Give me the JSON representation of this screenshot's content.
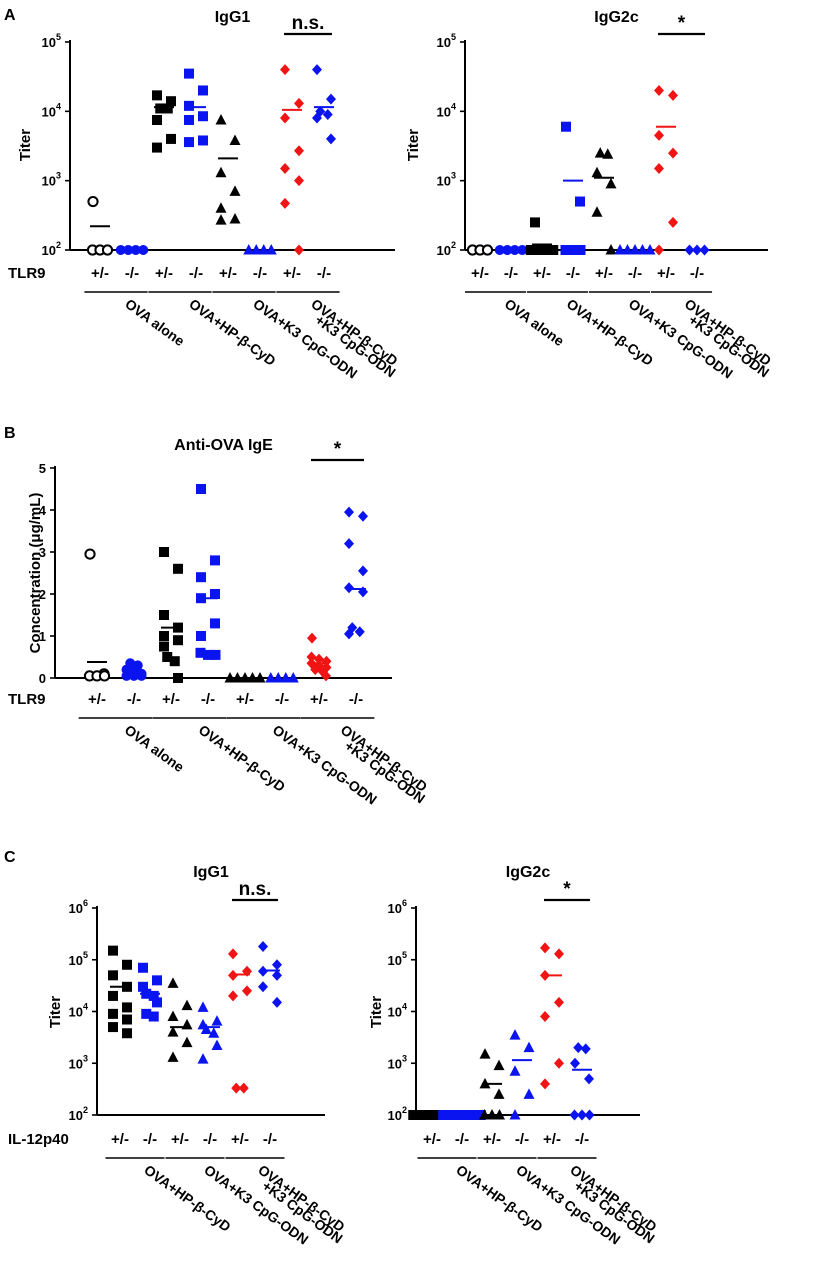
{
  "panel_labels": {
    "A": "A",
    "B": "B",
    "C": "C"
  },
  "colors": {
    "black": "#000000",
    "blue": "#0a14f0",
    "red": "#f01414",
    "white": "#ffffff"
  },
  "chart_data": [
    {
      "id": "A-IgG1",
      "type": "scatter",
      "title": "IgG1",
      "ylabel": "Titer",
      "yscale": "log",
      "ylim": [
        100,
        100000
      ],
      "yticks": [
        {
          "v": 100,
          "b": "10",
          "e": "2"
        },
        {
          "v": 1000,
          "b": "10",
          "e": "3"
        },
        {
          "v": 10000,
          "b": "10",
          "e": "4"
        },
        {
          "v": 100000,
          "b": "10",
          "e": "5"
        }
      ],
      "row_label": "TLR9",
      "genotypes": [
        "+/-",
        "-/-",
        "+/-",
        "-/-",
        "+/-",
        "-/-",
        "+/-",
        "-/-"
      ],
      "group_labels": [
        "OVA alone",
        "OVA+HP-β-CyD",
        "OVA+K3 CpG-ODN",
        [
          "OVA+HP-β-CyD",
          "+K3 CpG-ODN"
        ]
      ],
      "series": [
        {
          "marker": "circle-open",
          "color": "black",
          "values": [
            500,
            100,
            100,
            100
          ],
          "mean": 220
        },
        {
          "marker": "circle",
          "color": "blue",
          "values": [
            100,
            100,
            100,
            100
          ],
          "mean": null
        },
        {
          "marker": "square",
          "color": "black",
          "values": [
            17000,
            14000,
            11000,
            11000,
            7500,
            4000,
            3000
          ],
          "mean": 11500
        },
        {
          "marker": "square",
          "color": "blue",
          "values": [
            35000,
            20000,
            12000,
            8500,
            7500,
            3800,
            3600
          ],
          "mean": 11500
        },
        {
          "marker": "triangle",
          "color": "black",
          "values": [
            7500,
            3800,
            1300,
            700,
            400,
            280,
            270
          ],
          "mean": 2100
        },
        {
          "marker": "triangle",
          "color": "blue",
          "values": [
            100,
            100,
            100,
            100
          ],
          "mean": null
        },
        {
          "marker": "diamond",
          "color": "red",
          "values": [
            40000,
            13000,
            8000,
            2700,
            1500,
            1000,
            470,
            100
          ],
          "mean": 10500
        },
        {
          "marker": "diamond",
          "color": "blue",
          "values": [
            40000,
            15000,
            10000,
            9000,
            8000,
            4000
          ],
          "mean": 11500
        }
      ],
      "annotations": [
        {
          "text": "n.s.",
          "from": 6,
          "to": 7
        }
      ]
    },
    {
      "id": "A-IgG2c",
      "type": "scatter",
      "title": "IgG2c",
      "ylabel": "Titer",
      "yscale": "log",
      "ylim": [
        100,
        100000
      ],
      "yticks": [
        {
          "v": 100,
          "b": "10",
          "e": "2"
        },
        {
          "v": 1000,
          "b": "10",
          "e": "3"
        },
        {
          "v": 10000,
          "b": "10",
          "e": "4"
        },
        {
          "v": 100000,
          "b": "10",
          "e": "5"
        }
      ],
      "row_label": "",
      "genotypes": [
        "+/-",
        "-/-",
        "+/-",
        "-/-",
        "+/-",
        "-/-",
        "+/-",
        "-/-"
      ],
      "group_labels": [
        "OVA alone",
        "OVA+HP-β-CyD",
        "OVA+K3 CpG-ODN",
        [
          "OVA+HP-β-CyD",
          "+K3 CpG-ODN"
        ]
      ],
      "series": [
        {
          "marker": "circle-open",
          "color": "black",
          "values": [
            100,
            100,
            100
          ],
          "mean": null
        },
        {
          "marker": "circle",
          "color": "blue",
          "values": [
            100,
            100,
            100,
            100
          ],
          "mean": null
        },
        {
          "marker": "square",
          "color": "black",
          "values": [
            250,
            100,
            100,
            100,
            100
          ],
          "mean": 120
        },
        {
          "marker": "square",
          "color": "blue",
          "values": [
            6000,
            500,
            100,
            100,
            100
          ],
          "mean": 1000
        },
        {
          "marker": "triangle",
          "color": "black",
          "values": [
            2500,
            2400,
            1300,
            900,
            350,
            100
          ],
          "mean": 1100
        },
        {
          "marker": "triangle",
          "color": "blue",
          "values": [
            100,
            100,
            100,
            100,
            100
          ],
          "mean": null
        },
        {
          "marker": "diamond",
          "color": "red",
          "values": [
            20000,
            17000,
            4500,
            2500,
            1500,
            250,
            100
          ],
          "mean": 6000
        },
        {
          "marker": "diamond",
          "color": "blue",
          "values": [
            100,
            100,
            100
          ],
          "mean": null
        }
      ],
      "annotations": [
        {
          "text": "*",
          "from": 6,
          "to": 7
        }
      ]
    },
    {
      "id": "B-IgE",
      "type": "scatter",
      "title": "Anti-OVA IgE",
      "ylabel": "Concentration (μg/mL)",
      "yscale": "linear",
      "ylim": [
        0,
        5
      ],
      "yticks": [
        {
          "v": 0,
          "t": "0"
        },
        {
          "v": 1,
          "t": "1"
        },
        {
          "v": 2,
          "t": "2"
        },
        {
          "v": 3,
          "t": "3"
        },
        {
          "v": 4,
          "t": "4"
        },
        {
          "v": 5,
          "t": "5"
        }
      ],
      "row_label": "TLR9",
      "genotypes": [
        "+/-",
        "-/-",
        "+/-",
        "-/-",
        "+/-",
        "-/-",
        "+/-",
        "-/-"
      ],
      "group_labels": [
        "OVA alone",
        "OVA+HP-β-CyD",
        "OVA+K3 CpG-ODN",
        [
          "OVA+HP-β-CyD",
          "+K3 CpG-ODN"
        ]
      ],
      "series": [
        {
          "marker": "circle-open",
          "color": "black",
          "values": [
            2.95,
            0.1,
            0.05,
            0.05,
            0.05
          ],
          "mean": 0.38
        },
        {
          "marker": "circle",
          "color": "blue",
          "values": [
            0.35,
            0.3,
            0.2,
            0.15,
            0.1,
            0.05,
            0.05,
            0.05
          ],
          "mean": 0.15
        },
        {
          "marker": "square",
          "color": "black",
          "values": [
            3.0,
            2.6,
            1.5,
            1.2,
            1.0,
            0.9,
            0.75,
            0.5,
            0.4,
            0.0
          ],
          "mean": 1.2
        },
        {
          "marker": "square",
          "color": "blue",
          "values": [
            4.5,
            2.8,
            2.4,
            2.0,
            1.9,
            1.3,
            1.0,
            0.6,
            0.55,
            0.55
          ],
          "mean": 1.9
        },
        {
          "marker": "triangle",
          "color": "black",
          "values": [
            0,
            0,
            0,
            0,
            0
          ],
          "mean": null
        },
        {
          "marker": "triangle",
          "color": "blue",
          "values": [
            0,
            0,
            0,
            0
          ],
          "mean": null
        },
        {
          "marker": "diamond",
          "color": "red",
          "values": [
            0.95,
            0.5,
            0.45,
            0.4,
            0.35,
            0.3,
            0.25,
            0.2,
            0.15,
            0.05
          ],
          "mean": 0.35
        },
        {
          "marker": "diamond",
          "color": "blue",
          "values": [
            3.95,
            3.85,
            3.2,
            2.55,
            2.15,
            2.05,
            1.2,
            1.1,
            1.05
          ],
          "mean": 2.12
        }
      ],
      "annotations": [
        {
          "text": "*",
          "from": 6,
          "to": 7
        }
      ]
    },
    {
      "id": "C-IgG1",
      "type": "scatter",
      "title": "IgG1",
      "ylabel": "Titer",
      "yscale": "log",
      "ylim": [
        100,
        1000000
      ],
      "yticks": [
        {
          "v": 100,
          "b": "10",
          "e": "2"
        },
        {
          "v": 1000,
          "b": "10",
          "e": "3"
        },
        {
          "v": 10000,
          "b": "10",
          "e": "4"
        },
        {
          "v": 100000,
          "b": "10",
          "e": "5"
        },
        {
          "v": 1000000,
          "b": "10",
          "e": "6"
        }
      ],
      "row_label": "IL-12p40",
      "genotypes": [
        "+/-",
        "-/-",
        "+/-",
        "-/-",
        "+/-",
        "-/-"
      ],
      "group_labels": [
        "OVA+HP-β-CyD",
        "OVA+K3 CpG-ODN",
        [
          "OVA+HP-β-CyD",
          "+K3 CpG-ODN"
        ]
      ],
      "series": [
        {
          "marker": "square",
          "color": "black",
          "values": [
            150000,
            80000,
            50000,
            30000,
            20000,
            12000,
            9000,
            7000,
            5000,
            3800
          ],
          "mean": 30000
        },
        {
          "marker": "square",
          "color": "blue",
          "values": [
            70000,
            40000,
            30000,
            22000,
            20000,
            15000,
            9000,
            8000
          ],
          "mean": 22000
        },
        {
          "marker": "triangle",
          "color": "black",
          "values": [
            35000,
            13000,
            8000,
            5500,
            4000,
            2500,
            1300
          ],
          "mean": 5000
        },
        {
          "marker": "triangle",
          "color": "blue",
          "values": [
            12000,
            6500,
            5500,
            4500,
            3800,
            2200,
            1200
          ],
          "mean": 5000
        },
        {
          "marker": "diamond",
          "color": "red",
          "values": [
            130000,
            60000,
            50000,
            25000,
            20000,
            330,
            330
          ],
          "mean": 52000
        },
        {
          "marker": "diamond",
          "color": "blue",
          "values": [
            180000,
            80000,
            60000,
            50000,
            30000,
            15000
          ],
          "mean": 62000
        }
      ],
      "annotations": [
        {
          "text": "n.s.",
          "from": 4,
          "to": 5
        }
      ]
    },
    {
      "id": "C-IgG2c",
      "type": "scatter",
      "title": "IgG2c",
      "ylabel": "Titer",
      "yscale": "log",
      "ylim": [
        100,
        1000000
      ],
      "yticks": [
        {
          "v": 100,
          "b": "10",
          "e": "2"
        },
        {
          "v": 1000,
          "b": "10",
          "e": "3"
        },
        {
          "v": 10000,
          "b": "10",
          "e": "4"
        },
        {
          "v": 100000,
          "b": "10",
          "e": "5"
        },
        {
          "v": 1000000,
          "b": "10",
          "e": "6"
        }
      ],
      "row_label": "",
      "genotypes": [
        "+/-",
        "-/-",
        "+/-",
        "-/-",
        "+/-",
        "-/-"
      ],
      "group_labels": [
        "OVA+HP-β-CyD",
        "OVA+K3 CpG-ODN",
        [
          "OVA+HP-β-CyD",
          "+K3 CpG-ODN"
        ]
      ],
      "series": [
        {
          "marker": "square",
          "color": "black",
          "values": [
            100,
            100,
            100,
            100,
            100,
            100
          ],
          "mean": null
        },
        {
          "marker": "square",
          "color": "blue",
          "values": [
            100,
            100,
            100,
            100,
            100,
            100
          ],
          "mean": null
        },
        {
          "marker": "triangle",
          "color": "black",
          "values": [
            1500,
            900,
            400,
            250,
            100,
            100,
            100
          ],
          "mean": 400
        },
        {
          "marker": "triangle",
          "color": "blue",
          "values": [
            3500,
            2000,
            700,
            250,
            100
          ],
          "mean": 1150
        },
        {
          "marker": "diamond",
          "color": "red",
          "values": [
            170000,
            130000,
            50000,
            15000,
            8000,
            1000,
            400
          ],
          "mean": 50000
        },
        {
          "marker": "diamond",
          "color": "blue",
          "values": [
            2000,
            1900,
            1000,
            500,
            100,
            100,
            100
          ],
          "mean": 750
        }
      ],
      "annotations": [
        {
          "text": "*",
          "from": 4,
          "to": 5
        }
      ]
    }
  ]
}
